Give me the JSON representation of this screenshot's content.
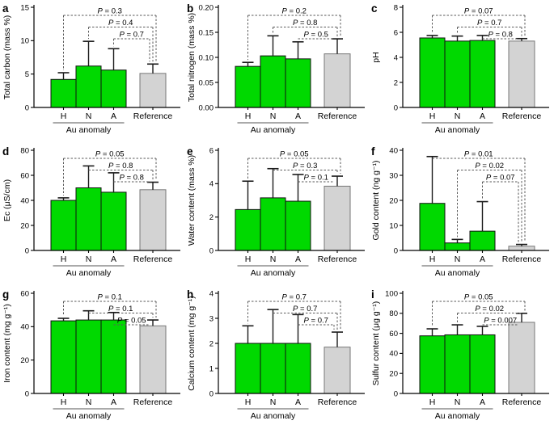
{
  "figure": {
    "group_label": "Au anomaly",
    "p_prefix": "P",
    "colors": {
      "anomaly_bar": "#00d900",
      "anomaly_bar_border": "#111111",
      "reference_bar": "#d3d3d3",
      "reference_bar_border": "#777777",
      "error_bar": "#1a1a1a",
      "bracket": "#5a5a5a",
      "axis": "#000000"
    }
  },
  "chart_data": [
    {
      "type": "bar",
      "panel_label": "a",
      "ylabel": "Total carbon (mass %)",
      "ylim": [
        0,
        15
      ],
      "yticks": [
        "0",
        "5",
        "10",
        "15"
      ],
      "categories": [
        "H",
        "N",
        "A",
        "Reference"
      ],
      "values": [
        4.2,
        6.2,
        5.6,
        5.1
      ],
      "error_top": [
        5.2,
        9.9,
        8.8,
        6.5
      ],
      "comparisons": [
        {
          "bar": "H",
          "vs": "Reference",
          "p": "0.3"
        },
        {
          "bar": "N",
          "vs": "Reference",
          "p": "0.4"
        },
        {
          "bar": "A",
          "vs": "Reference",
          "p": "0.7"
        }
      ]
    },
    {
      "type": "bar",
      "panel_label": "b",
      "ylabel": "Total nitrogen (mass %)",
      "ylim": [
        0,
        0.2
      ],
      "yticks": [
        "0.00",
        "0.05",
        "0.10",
        "0.15",
        "0.20"
      ],
      "categories": [
        "H",
        "N",
        "A",
        "Reference"
      ],
      "values": [
        0.082,
        0.103,
        0.097,
        0.107
      ],
      "error_top": [
        0.09,
        0.143,
        0.131,
        0.137
      ],
      "comparisons": [
        {
          "bar": "H",
          "vs": "Reference",
          "p": "0.2"
        },
        {
          "bar": "N",
          "vs": "Reference",
          "p": "0.8"
        },
        {
          "bar": "A",
          "vs": "Reference",
          "p": "0.5"
        }
      ]
    },
    {
      "type": "bar",
      "panel_label": "c",
      "ylabel": "pH",
      "ylim": [
        0,
        8
      ],
      "yticks": [
        "0",
        "2",
        "4",
        "6",
        "8"
      ],
      "categories": [
        "H",
        "N",
        "A",
        "Reference"
      ],
      "values": [
        5.55,
        5.3,
        5.35,
        5.3
      ],
      "error_top": [
        5.75,
        5.7,
        5.75,
        5.5
      ],
      "comparisons": [
        {
          "bar": "H",
          "vs": "Reference",
          "p": "0.07"
        },
        {
          "bar": "N",
          "vs": "Reference",
          "p": "0.7"
        },
        {
          "bar": "A",
          "vs": "Reference",
          "p": "0.8"
        }
      ]
    },
    {
      "type": "bar",
      "panel_label": "d",
      "ylabel": "Ec (μS/cm)",
      "ylim": [
        0,
        80
      ],
      "yticks": [
        "0",
        "20",
        "40",
        "60",
        "80"
      ],
      "categories": [
        "H",
        "N",
        "A",
        "Reference"
      ],
      "values": [
        40,
        50,
        46.5,
        48.5
      ],
      "error_top": [
        42,
        67.5,
        62,
        54.5
      ],
      "comparisons": [
        {
          "bar": "H",
          "vs": "Reference",
          "p": "0.05"
        },
        {
          "bar": "N",
          "vs": "Reference",
          "p": "0.8"
        },
        {
          "bar": "A",
          "vs": "Reference",
          "p": "0.8"
        }
      ]
    },
    {
      "type": "bar",
      "panel_label": "e",
      "ylabel": "Water content (mass %)",
      "ylim": [
        0,
        6
      ],
      "yticks": [
        "0",
        "2",
        "4",
        "6"
      ],
      "categories": [
        "H",
        "N",
        "A",
        "Reference"
      ],
      "values": [
        2.45,
        3.15,
        2.95,
        3.85
      ],
      "error_top": [
        4.15,
        4.9,
        4.55,
        4.45
      ],
      "comparisons": [
        {
          "bar": "H",
          "vs": "Reference",
          "p": "0.05"
        },
        {
          "bar": "N",
          "vs": "Reference",
          "p": "0.3"
        },
        {
          "bar": "A",
          "vs": "Reference",
          "p": "0.1"
        }
      ]
    },
    {
      "type": "bar",
      "panel_label": "f",
      "ylabel": "Gold content (ng g⁻¹)",
      "ylim": [
        0,
        40
      ],
      "yticks": [
        "0",
        "10",
        "20",
        "30",
        "40"
      ],
      "categories": [
        "H",
        "N",
        "A",
        "Reference"
      ],
      "values": [
        18.8,
        3.0,
        7.7,
        1.7
      ],
      "error_top": [
        37.5,
        4.4,
        19.5,
        2.4
      ],
      "comparisons": [
        {
          "bar": "H",
          "vs": "Reference",
          "p": "0.01"
        },
        {
          "bar": "N",
          "vs": "Reference",
          "p": "0.02"
        },
        {
          "bar": "A",
          "vs": "Reference",
          "p": "0.07"
        }
      ]
    },
    {
      "type": "bar",
      "panel_label": "g",
      "ylabel": "Iron content (mg g⁻¹)",
      "ylim": [
        0,
        60
      ],
      "yticks": [
        "0",
        "20",
        "40",
        "60"
      ],
      "categories": [
        "H",
        "N",
        "A",
        "Reference"
      ],
      "values": [
        43.5,
        44,
        44,
        40.5
      ],
      "error_top": [
        45,
        49.5,
        48.5,
        44
      ],
      "comparisons": [
        {
          "bar": "H",
          "vs": "Reference",
          "p": "0.1"
        },
        {
          "bar": "N",
          "vs": "Reference",
          "p": "0.1"
        },
        {
          "bar": "A",
          "vs": "Reference",
          "p": "0.05"
        }
      ]
    },
    {
      "type": "bar",
      "panel_label": "h",
      "ylabel": "Calcium content (mg g⁻¹)",
      "ylim": [
        0,
        4
      ],
      "yticks": [
        "0",
        "1",
        "2",
        "3",
        "4"
      ],
      "categories": [
        "H",
        "N",
        "A",
        "Reference"
      ],
      "values": [
        2.0,
        2.0,
        2.0,
        1.85
      ],
      "error_top": [
        2.7,
        3.35,
        3.15,
        2.45
      ],
      "comparisons": [
        {
          "bar": "H",
          "vs": "Reference",
          "p": "0.7"
        },
        {
          "bar": "N",
          "vs": "Reference",
          "p": "0.7"
        },
        {
          "bar": "A",
          "vs": "Reference",
          "p": "0.7"
        }
      ]
    },
    {
      "type": "bar",
      "panel_label": "i",
      "ylabel": "Sulfur content (μg g⁻¹)",
      "ylim": [
        0,
        100
      ],
      "yticks": [
        "0",
        "20",
        "40",
        "60",
        "80",
        "100"
      ],
      "categories": [
        "H",
        "N",
        "A",
        "Reference"
      ],
      "values": [
        57.5,
        58.5,
        58.5,
        71
      ],
      "error_top": [
        64.5,
        68.5,
        67,
        80
      ],
      "comparisons": [
        {
          "bar": "H",
          "vs": "Reference",
          "p": "0.05"
        },
        {
          "bar": "N",
          "vs": "Reference",
          "p": "0.02"
        },
        {
          "bar": "A",
          "vs": "Reference",
          "p": "0.007"
        }
      ]
    }
  ]
}
